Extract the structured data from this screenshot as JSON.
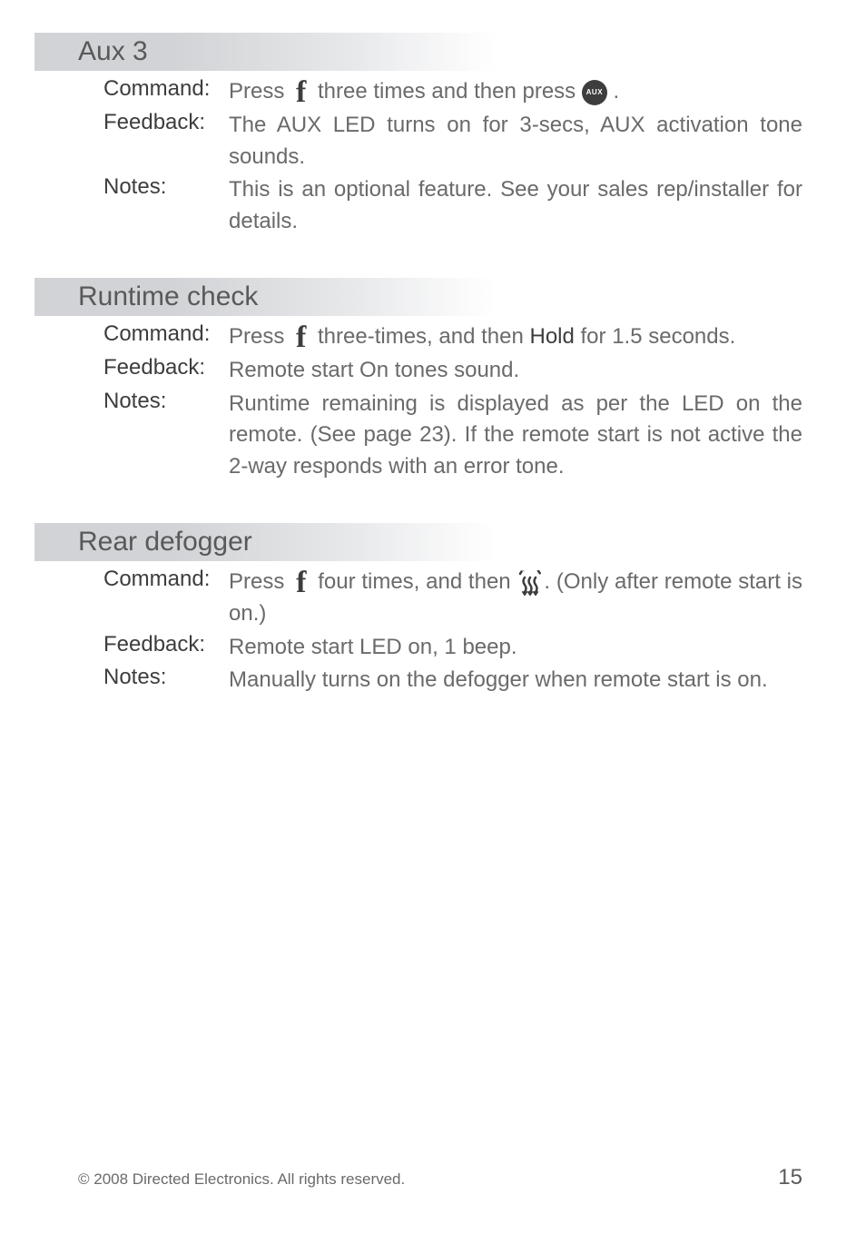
{
  "sections": [
    {
      "heading": "Aux 3",
      "rows": [
        {
          "label": "Command:",
          "parts": [
            "Press ",
            {
              "icon": "f"
            },
            " three times and then press ",
            {
              "icon": "aux"
            },
            " ."
          ]
        },
        {
          "label": "Feedback:",
          "parts": [
            "The AUX LED turns on for 3-secs, AUX activation tone sounds."
          ]
        },
        {
          "label": "Notes:",
          "parts": [
            "This is an optional feature. See your sales rep/installer for details."
          ]
        }
      ]
    },
    {
      "heading": "Runtime check",
      "rows": [
        {
          "label": "Command:",
          "parts": [
            "Press ",
            {
              "icon": "f"
            },
            " three-times, and then ",
            {
              "bold": "Hold"
            },
            " for 1.5 seconds."
          ]
        },
        {
          "label": "Feedback:",
          "parts": [
            "Remote start On tones sound."
          ]
        },
        {
          "label": "Notes:",
          "parts": [
            "Runtime remaining is displayed as per the LED on the remote. (See page 23). If the remote start is not active the 2-way responds with an error tone."
          ]
        }
      ]
    },
    {
      "heading": "Rear defogger",
      "rows": [
        {
          "label": "Command:",
          "parts": [
            "Press ",
            {
              "icon": "f"
            },
            " four times, and then ",
            {
              "icon": "defog"
            },
            ". (Only after remote start is on.)"
          ]
        },
        {
          "label": "Feedback:",
          "parts": [
            "Remote start LED on, 1 beep."
          ]
        },
        {
          "label": "Notes:",
          "parts": [
            "Manually turns on the defogger when remote start is on."
          ]
        }
      ]
    }
  ],
  "footer": {
    "copyright": "© 2008 Directed Electronics. All rights reserved.",
    "page": "15"
  },
  "icons": {
    "f_glyph": "f",
    "aux_label": "AUX"
  },
  "colors": {
    "text_body": "#6a6a6a",
    "text_label": "#3d3d3d",
    "heading_bg_start": "#d1d3d6",
    "page_bg": "#ffffff"
  }
}
